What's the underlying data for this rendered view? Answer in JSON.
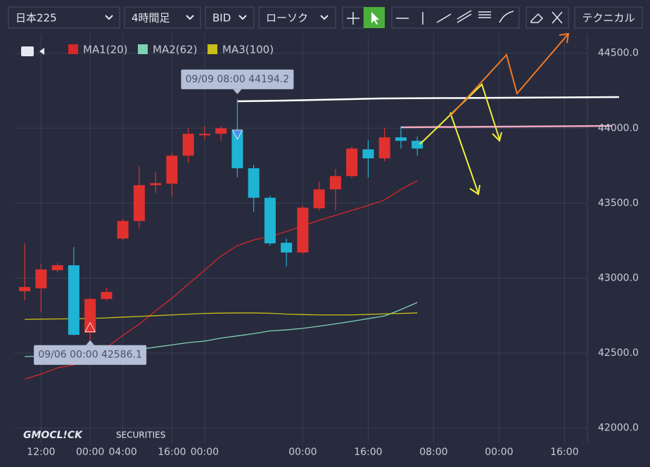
{
  "toolbar": {
    "symbol": "日本225",
    "timeframe": "4時間足",
    "price_type": "BID",
    "chart_style": "ローソク",
    "technical": "テクニカル"
  },
  "logo": {
    "brand": "GMOCL!CK",
    "sub": "SECURITIES"
  },
  "chart_data": {
    "type": "candlestick",
    "up_color": "#e0312f",
    "down_color": "#1fb3d4",
    "open": [
      42913,
      42932,
      43053,
      43086,
      42636,
      42861,
      43264,
      43381,
      43620,
      43630,
      43817,
      43953,
      43963,
      43986,
      43733,
      43536,
      43236,
      43171,
      43466,
      43592,
      43681,
      43859,
      43799,
      43939,
      43916
    ],
    "high": [
      43232,
      43096,
      43100,
      43208,
      42871,
      42936,
      43396,
      43747,
      43709,
      43836,
      44000,
      44014,
      44014,
      44194.2,
      43756,
      43550,
      43264,
      43485,
      43644,
      43728,
      43878,
      43920,
      44000,
      44014,
      43944
    ],
    "low": [
      42852,
      42772,
      43039,
      42618,
      42586.1,
      42852,
      43255,
      43330,
      43569,
      43545,
      43770,
      43925,
      43916,
      43672,
      43442,
      43217,
      43077,
      43161,
      43452,
      43452,
      43667,
      43672,
      43780,
      43864,
      43817
    ],
    "close": [
      42941,
      43058,
      43086,
      42622,
      42861,
      42908,
      43381,
      43620,
      43634,
      43817,
      43963,
      43963,
      44000,
      43733,
      43536,
      43232,
      43171,
      43470,
      43592,
      43681,
      43864,
      43799,
      43939,
      43916,
      43864
    ],
    "series": [
      {
        "name": "MA1(20)",
        "color": "#d8262a",
        "values": [
          42327,
          42360,
          42402,
          42421,
          42468,
          42538,
          42618,
          42693,
          42782,
          42866,
          42960,
          43053,
          43147,
          43217,
          43255,
          43278,
          43311,
          43349,
          43386,
          43419,
          43452,
          43485,
          43522,
          43592,
          43649
        ]
      },
      {
        "name": "MA2(62)",
        "color": "#7fd0b4",
        "values": [
          42477,
          42480,
          42485,
          42490,
          42495,
          42505,
          42515,
          42525,
          42540,
          42555,
          42570,
          42580,
          42600,
          42615,
          42630,
          42648,
          42655,
          42665,
          42680,
          42695,
          42712,
          42730,
          42748,
          42790,
          42838
        ]
      },
      {
        "name": "MA3(100)",
        "color": "#c8c01a",
        "values": [
          42725,
          42727,
          42728,
          42729,
          42731,
          42735,
          42740,
          42745,
          42750,
          42755,
          42760,
          42765,
          42767,
          42768,
          42768,
          42766,
          42760,
          42757,
          42755,
          42755,
          42755,
          42758,
          42762,
          42765,
          42768
        ]
      }
    ],
    "annotations": [
      {
        "text": "09/09 08:00 44194.2",
        "index": 13,
        "value": 44194.2
      },
      {
        "text": "09/06 00:00 42586.1",
        "index": 4,
        "value": 42586.1
      }
    ],
    "xlim": [
      -0.65,
      34.4
    ],
    "xticks": [
      {
        "value": 1,
        "label": "12:00"
      },
      {
        "value": 4,
        "label": "00:00"
      },
      {
        "value": 6,
        "label": "04:00"
      },
      {
        "value": 9,
        "label": "16:00"
      },
      {
        "value": 11,
        "label": "00:00"
      },
      {
        "value": 17,
        "label": "00:00"
      },
      {
        "value": 21,
        "label": "16:00"
      },
      {
        "value": 25,
        "label": "08:00"
      },
      {
        "value": 29,
        "label": "00:00"
      },
      {
        "value": 33,
        "label": "16:00"
      }
    ],
    "ylim": [
      41900,
      44630
    ],
    "yticks": [
      {
        "value": 42000,
        "label": "42000.0"
      },
      {
        "value": 42500,
        "label": "42500.0"
      },
      {
        "value": 43000,
        "label": "43000.0"
      },
      {
        "value": 43500,
        "label": "43500.0"
      },
      {
        "value": 44000,
        "label": "44000.0"
      },
      {
        "value": 44500,
        "label": "44500.0"
      }
    ],
    "grid": true
  }
}
